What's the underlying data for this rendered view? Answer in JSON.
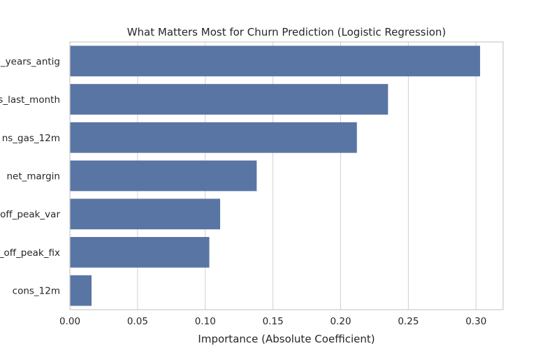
{
  "chart_data": {
    "type": "bar",
    "orientation": "horizontal",
    "title": "What Matters Most for Churn Prediction (Logistic Regression)",
    "xlabel": "Importance (Absolute Coefficient)",
    "ylabel": "",
    "categories": [
      "_years_antig",
      "s_last_month",
      "ns_gas_12m",
      "net_margin",
      "off_peak_var",
      "_off_peak_fix",
      "cons_12m"
    ],
    "values": [
      0.303,
      0.235,
      0.212,
      0.138,
      0.111,
      0.103,
      0.016
    ],
    "xlim": [
      0,
      0.32
    ],
    "xticks": [
      "0.00",
      "0.05",
      "0.10",
      "0.15",
      "0.20",
      "0.25",
      "0.30"
    ],
    "grid": "vertical",
    "bar_color": "#5975a4",
    "grid_color": "#d0d0d0",
    "spine_color": "#cccccc"
  }
}
